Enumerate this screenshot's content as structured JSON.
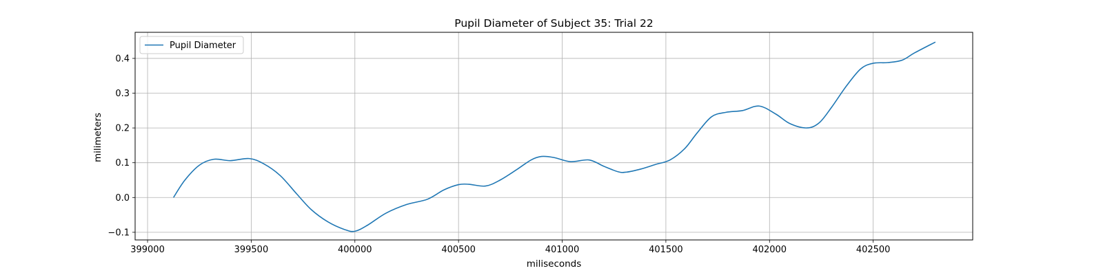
{
  "chart_data": {
    "type": "line",
    "title": "Pupil Diameter of Subject 35: Trial 22",
    "xlabel": "miliseconds",
    "ylabel": "milimeters",
    "xlim": [
      398940,
      402980
    ],
    "ylim": [
      -0.122,
      0.475
    ],
    "xticks": [
      399000,
      399500,
      400000,
      400500,
      401000,
      401500,
      402000,
      402500
    ],
    "yticks": [
      -0.1,
      0.0,
      0.1,
      0.2,
      0.3,
      0.4
    ],
    "ytick_labels": [
      "−0.1",
      "0.0",
      "0.1",
      "0.2",
      "0.3",
      "0.4"
    ],
    "grid": true,
    "legend_position": "top-left",
    "colors": {
      "line": "#1f77b4",
      "grid": "#b0b0b0"
    },
    "series": [
      {
        "name": "Pupil Diameter",
        "x": [
          399125,
          399180,
          399250,
          399320,
          399400,
          399490,
          399560,
          399640,
          399720,
          399790,
          399870,
          399950,
          400000,
          400060,
          400150,
          400250,
          400350,
          400430,
          400500,
          400550,
          400630,
          400700,
          400780,
          400850,
          400900,
          400960,
          401040,
          401130,
          401200,
          401270,
          401310,
          401380,
          401450,
          401520,
          401590,
          401650,
          401720,
          401790,
          401870,
          401950,
          402030,
          402100,
          402180,
          402240,
          402300,
          402370,
          402440,
          402500,
          402570,
          402640,
          402700,
          402800
        ],
        "y": [
          0.0,
          0.05,
          0.093,
          0.11,
          0.106,
          0.112,
          0.097,
          0.063,
          0.01,
          -0.035,
          -0.07,
          -0.092,
          -0.097,
          -0.08,
          -0.045,
          -0.02,
          -0.005,
          0.022,
          0.037,
          0.038,
          0.033,
          0.05,
          0.08,
          0.108,
          0.118,
          0.115,
          0.103,
          0.108,
          0.09,
          0.074,
          0.073,
          0.082,
          0.095,
          0.108,
          0.14,
          0.185,
          0.232,
          0.245,
          0.25,
          0.263,
          0.24,
          0.212,
          0.2,
          0.215,
          0.26,
          0.32,
          0.37,
          0.386,
          0.388,
          0.395,
          0.416,
          0.447
        ]
      }
    ]
  }
}
